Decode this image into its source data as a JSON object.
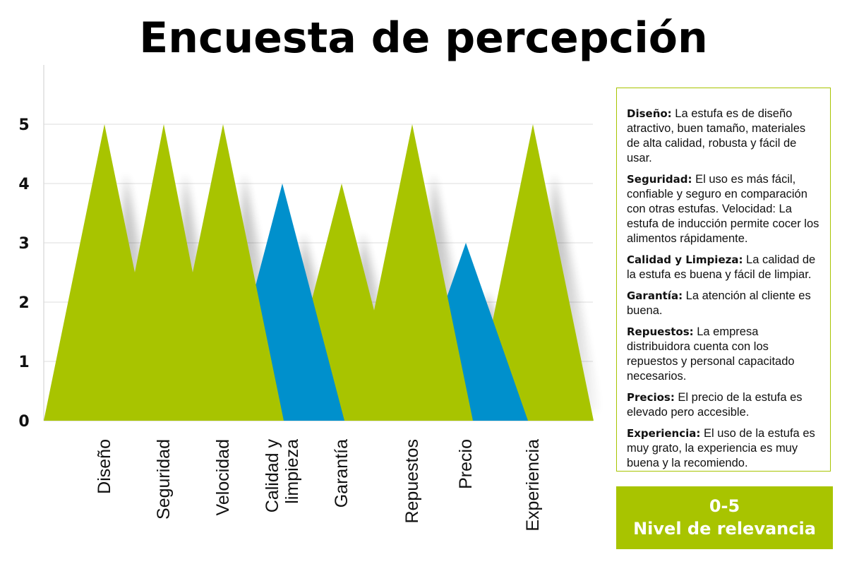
{
  "title": "Encuesta de percepción",
  "colors": {
    "green": "#a8c400",
    "blue": "#0090cc",
    "grid": "#dddddd"
  },
  "chart_data": {
    "type": "bar",
    "categories": [
      "Diseño",
      "Seguridad",
      "Velocidad",
      "Calidad y\nlimpieza",
      "Garantía",
      "Repuestos",
      "Precio",
      "Experiencia"
    ],
    "values": [
      5,
      5,
      5,
      4,
      4,
      5,
      3,
      5
    ],
    "colors": [
      "green",
      "green",
      "green",
      "blue",
      "green",
      "green",
      "blue",
      "green"
    ],
    "yticks": [
      0,
      1,
      2,
      3,
      4,
      5
    ],
    "ylim": [
      0,
      6
    ],
    "grid": true
  },
  "legend": [
    {
      "term": "Diseño:",
      "text": " La estufa es de diseño atractivo, buen tamaño, materiales de alta calidad, robusta y fácil de usar."
    },
    {
      "term": "Seguridad:",
      "text": " El uso es más fácil, confiable y seguro en comparación con otras estufas. Velocidad: La estufa de inducción permite cocer los alimentos rápidamente."
    },
    {
      "term": "Calidad y Limpieza:",
      "text": " La calidad de la estufa es buena y fácil de limpiar."
    },
    {
      "term": "Garantía:",
      "text": " La atención al cliente es buena."
    },
    {
      "term": "Repuestos:",
      "text": " La empresa distribuidora cuenta con los repuestos y personal capacitado necesarios."
    },
    {
      "term": "Precios:",
      "text": " El precio de la estufa es elevado pero accesible."
    },
    {
      "term": "Experiencia:",
      "text": " El uso de la estufa es muy grato, la experiencia es muy buena y la recomiendo."
    }
  ],
  "scale": {
    "range": "0-5",
    "label": "Nivel de relevancia"
  }
}
